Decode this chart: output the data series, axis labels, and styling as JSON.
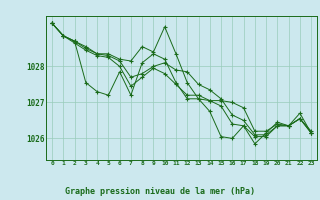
{
  "xlabel": "Graphe pression niveau de la mer (hPa)",
  "x_labels": [
    "0",
    "1",
    "2",
    "3",
    "4",
    "5",
    "6",
    "7",
    "8",
    "9",
    "10",
    "11",
    "12",
    "13",
    "14",
    "15",
    "16",
    "17",
    "18",
    "19",
    "20",
    "21",
    "22",
    "23"
  ],
  "ylim": [
    1025.4,
    1029.4
  ],
  "yticks": [
    1026,
    1027,
    1028
  ],
  "xlim": [
    -0.5,
    23.5
  ],
  "bg_color": "#cce8ee",
  "grid_color": "#99ccbb",
  "line_color": "#1a6b1a",
  "series": [
    [
      1029.2,
      1028.85,
      1028.7,
      1027.55,
      1027.3,
      1027.2,
      1027.85,
      1027.2,
      1028.1,
      1028.35,
      1028.2,
      1027.55,
      1027.1,
      1027.1,
      1026.75,
      1026.05,
      1026.0,
      1026.35,
      1025.85,
      1026.15,
      1026.45,
      1026.35,
      1026.7,
      1026.15
    ],
    [
      1029.2,
      1028.85,
      1028.7,
      1028.55,
      1028.35,
      1028.35,
      1028.2,
      1028.15,
      1028.55,
      1028.4,
      1029.1,
      1028.35,
      1027.55,
      1027.1,
      1027.05,
      1027.05,
      1027.0,
      1026.85,
      1026.2,
      1026.2,
      1026.4,
      1026.35,
      1026.55,
      1026.2
    ],
    [
      1029.2,
      1028.85,
      1028.7,
      1028.5,
      1028.35,
      1028.3,
      1028.15,
      1027.7,
      1027.8,
      1028.0,
      1028.1,
      1027.9,
      1027.85,
      1027.5,
      1027.35,
      1027.1,
      1026.65,
      1026.5,
      1026.1,
      1026.1,
      1026.35,
      1026.35,
      1026.55,
      1026.15
    ],
    [
      1029.2,
      1028.85,
      1028.65,
      1028.45,
      1028.3,
      1028.25,
      1028.0,
      1027.45,
      1027.7,
      1027.95,
      1027.8,
      1027.5,
      1027.2,
      1027.2,
      1027.05,
      1026.9,
      1026.4,
      1026.35,
      1026.05,
      1026.05,
      1026.35,
      1026.35,
      1026.55,
      1026.15
    ]
  ]
}
